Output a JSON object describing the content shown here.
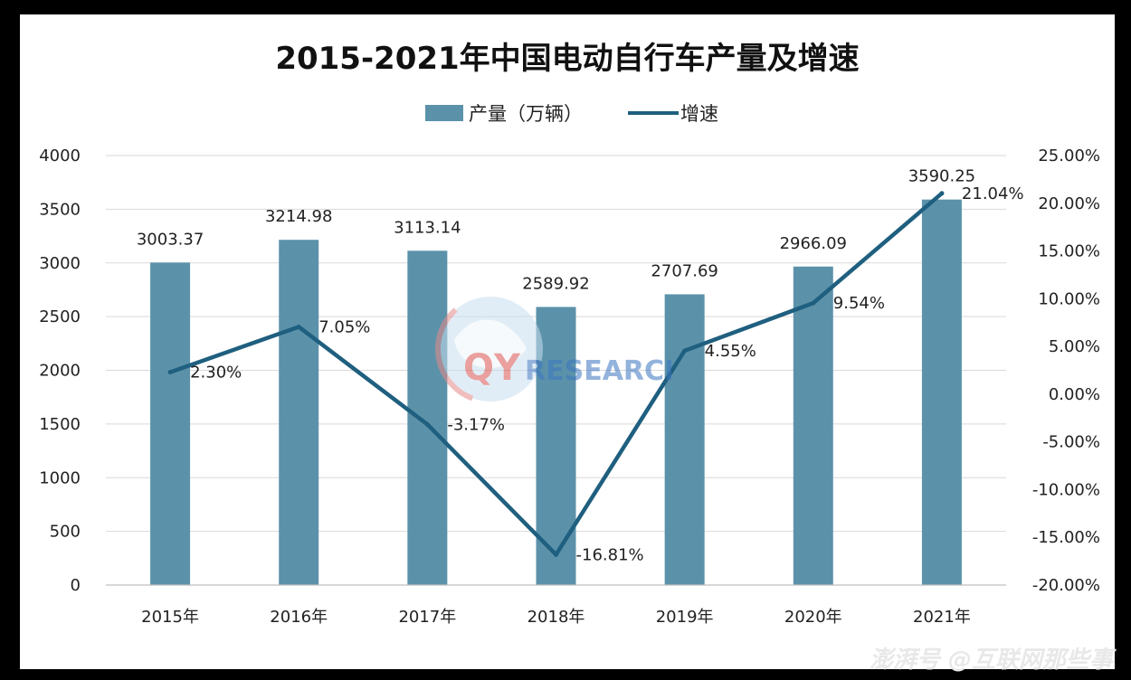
{
  "chart_data": {
    "type": "bar+line",
    "title": "2015-2021年中国电动自行车产量及增速",
    "categories": [
      "2015年",
      "2016年",
      "2017年",
      "2018年",
      "2019年",
      "2020年",
      "2021年"
    ],
    "series": [
      {
        "name": "产量（万辆）",
        "kind": "bar",
        "axis": "left",
        "values": [
          3003.37,
          3214.98,
          3113.14,
          2589.92,
          2707.69,
          2966.09,
          3590.25
        ],
        "labels": [
          "3003.37",
          "3214.98",
          "3113.14",
          "2589.92",
          "2707.69",
          "2966.09",
          "3590.25"
        ]
      },
      {
        "name": "增速",
        "kind": "line",
        "axis": "right",
        "values": [
          2.3,
          7.05,
          -3.17,
          -16.81,
          4.55,
          9.54,
          21.04
        ],
        "labels": [
          "2.30%",
          "7.05%",
          "-3.17%",
          "-16.81%",
          "4.55%",
          "9.54%",
          "21.04%"
        ]
      }
    ],
    "y_left": {
      "range": [
        0,
        4000
      ],
      "ticks": [
        "0",
        "500",
        "1000",
        "1500",
        "2000",
        "2500",
        "3000",
        "3500",
        "4000"
      ]
    },
    "y_right": {
      "range": [
        -20,
        25
      ],
      "ticks": [
        "-20.00%",
        "-15.00%",
        "-10.00%",
        "-5.00%",
        "0.00%",
        "5.00%",
        "10.00%",
        "15.00%",
        "20.00%",
        "25.00%"
      ]
    },
    "grid": true,
    "legend_position": "top-center",
    "colors": {
      "bar": "#5b92aa",
      "line": "#1f5f7f",
      "grid": "#d9d9d9"
    }
  },
  "watermark": {
    "text": "QYRESEARCH"
  },
  "footer": {
    "text": "澎湃号 @互联网那些事"
  }
}
